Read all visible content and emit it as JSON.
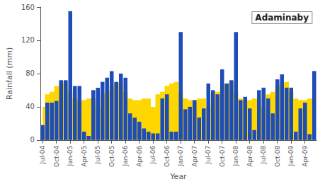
{
  "chart_data": {
    "type": "bar",
    "title": "Adaminaby",
    "xlabel": "Year",
    "ylabel": "Rainfall (mm)",
    "categories": [
      "Jul-04",
      null,
      null,
      "Oct-04",
      null,
      null,
      "Jan-05",
      null,
      null,
      "Apr-05",
      null,
      null,
      "Jul-05",
      null,
      null,
      "Oct-05",
      null,
      null,
      "Jan-06",
      null,
      null,
      "Apr-06",
      null,
      null,
      "Jul-06",
      null,
      null,
      "Oct-06",
      null,
      null,
      "Jan-07",
      null,
      null,
      "Apr-07",
      null,
      null,
      "Jul-07",
      null,
      null,
      "Oct-07",
      null,
      null,
      "Jan-08",
      null,
      null,
      "Apr-08",
      null,
      null,
      "Jul-08",
      null,
      null,
      "Oct-08",
      null,
      null,
      "Jan-09",
      null,
      null,
      "Apr-09",
      null,
      null
    ],
    "series": [
      {
        "type": "area",
        "color": "#FFD700",
        "values": [
          40,
          55,
          58,
          65,
          68,
          70,
          58,
          50,
          48,
          48,
          50,
          50,
          40,
          55,
          58,
          65,
          68,
          70,
          58,
          50,
          48,
          48,
          50,
          50,
          40,
          55,
          58,
          65,
          68,
          70,
          58,
          50,
          48,
          48,
          50,
          50,
          40,
          55,
          58,
          65,
          68,
          70,
          58,
          50,
          48,
          48,
          50,
          50,
          40,
          55,
          58,
          65,
          68,
          70,
          58,
          50,
          48,
          48,
          50,
          50
        ]
      },
      {
        "type": "bar",
        "color": "#1E4DB8",
        "values": [
          18,
          45,
          45,
          47,
          72,
          72,
          155,
          65,
          65,
          10,
          5,
          60,
          63,
          70,
          75,
          83,
          70,
          80,
          75,
          32,
          27,
          22,
          14,
          10,
          8,
          8,
          50,
          55,
          10,
          10,
          130,
          37,
          40,
          48,
          27,
          38,
          68,
          60,
          55,
          85,
          68,
          72,
          130,
          48,
          52,
          38,
          12,
          60,
          63,
          50,
          32,
          73,
          79,
          63,
          63,
          10,
          38,
          45,
          7,
          83
        ]
      }
    ],
    "ylim": [
      0,
      160
    ],
    "yticks": [
      0,
      40,
      80,
      120,
      160
    ],
    "grid": false
  }
}
